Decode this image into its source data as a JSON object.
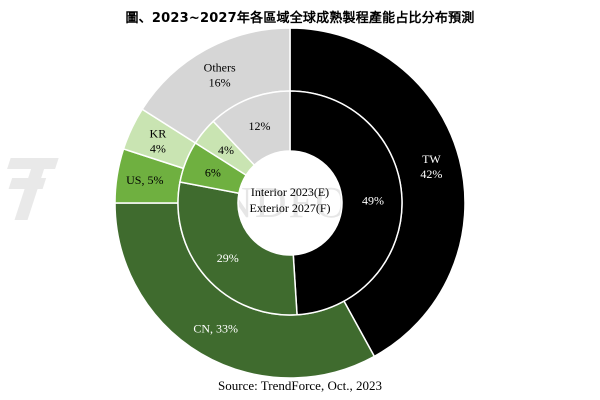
{
  "title": "圖、2023~2027年各區域全球成熟製程產能占比分布預測",
  "source": "Source: TrendForce, Oct., 2023",
  "watermark": "TRENDFORCE",
  "center_label": {
    "line1": "Interior  2023(E)",
    "line2": "Exterior 2027(F)"
  },
  "colors": {
    "TW": "#000000",
    "CN": "#3f6b2e",
    "US": "#6fb040",
    "KR": "#c9e4b2",
    "Others": "#d6d6d6"
  },
  "chart_data": {
    "type": "pie",
    "style": "double-donut",
    "title": "圖、2023~2027年各區域全球成熟製程產能占比分布預測",
    "categories": [
      "TW",
      "CN",
      "US",
      "KR",
      "Others"
    ],
    "series": [
      {
        "name": "2023(E)",
        "ring": "interior",
        "values": [
          49,
          29,
          6,
          4,
          12
        ],
        "labels": [
          "49%",
          "29%",
          "6%",
          "4%",
          "12%"
        ]
      },
      {
        "name": "2027(F)",
        "ring": "exterior",
        "values": [
          42,
          33,
          5,
          4,
          16
        ],
        "labels": [
          "TW\n42%",
          "CN, 33%",
          "US, 5%",
          "KR\n4%",
          "Others\n16%"
        ]
      }
    ]
  }
}
